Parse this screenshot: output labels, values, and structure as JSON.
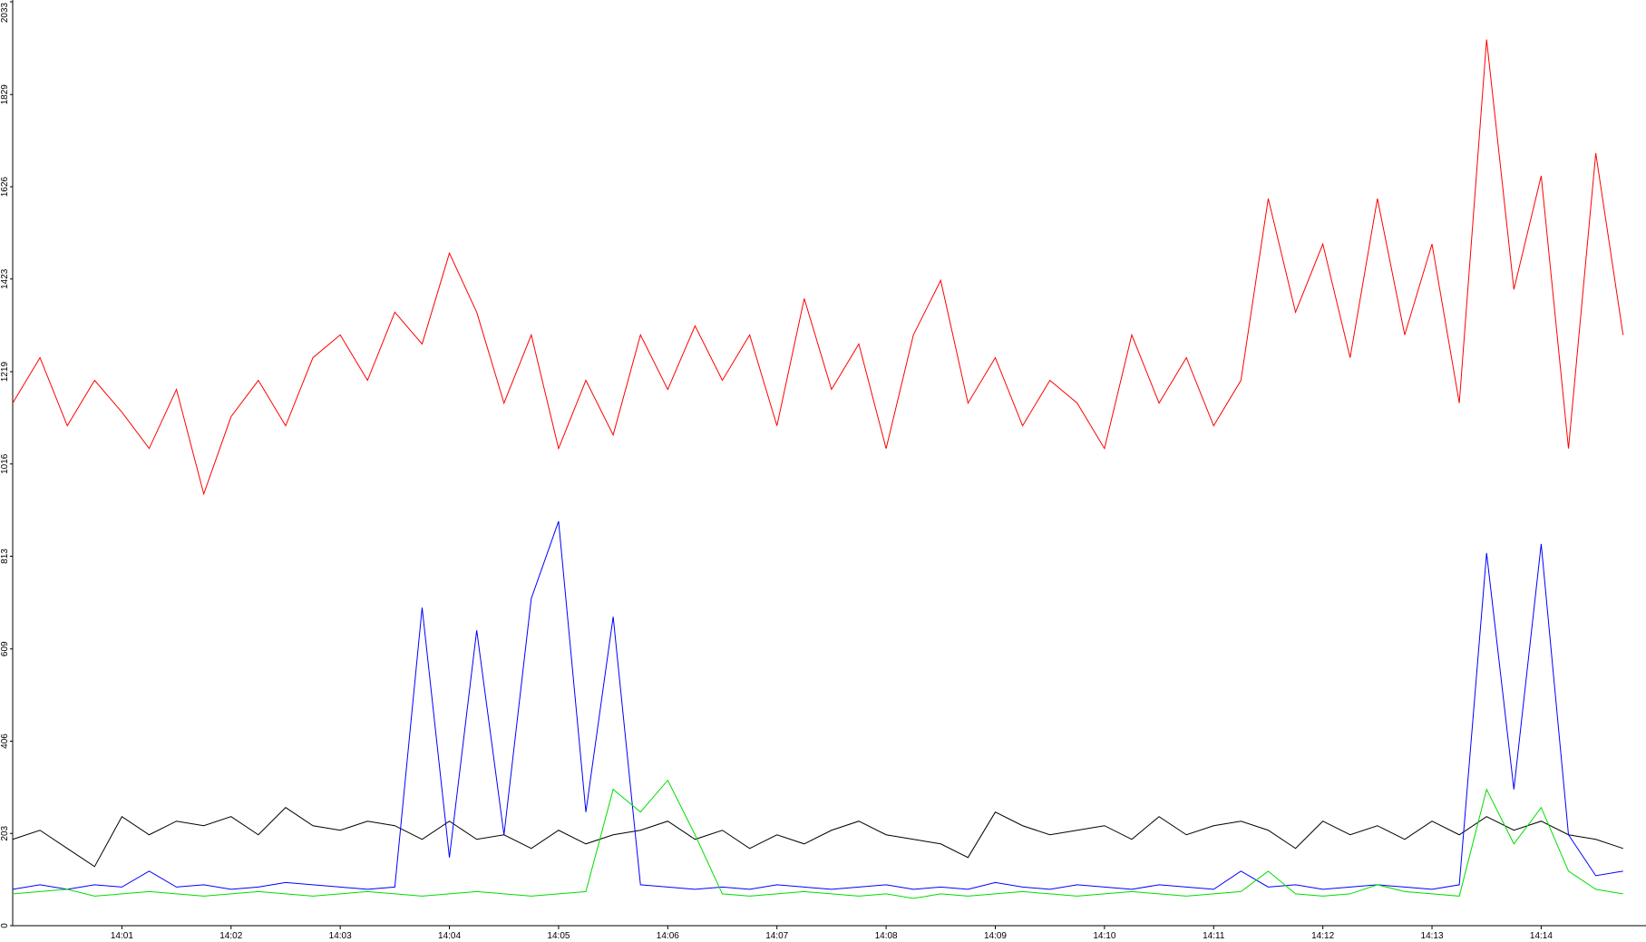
{
  "chart_data": {
    "type": "line",
    "x": [
      0,
      0.25,
      0.5,
      0.75,
      1,
      1.25,
      1.5,
      1.75,
      2,
      2.25,
      2.5,
      2.75,
      3,
      3.25,
      3.5,
      3.75,
      4,
      4.25,
      4.5,
      4.75,
      5,
      5.25,
      5.5,
      5.75,
      6,
      6.25,
      6.5,
      6.75,
      7,
      7.25,
      7.5,
      7.75,
      8,
      8.25,
      8.5,
      8.75,
      9,
      9.25,
      9.5,
      9.75,
      10,
      10.25,
      10.5,
      10.75,
      11,
      11.25,
      11.5,
      11.75,
      12,
      12.25,
      12.5,
      12.75,
      13,
      13.25,
      13.5,
      13.75,
      14,
      14.25,
      14.5,
      14.75
    ],
    "series": [
      {
        "color": "#ff0000",
        "values": [
          1150,
          1250,
          1100,
          1200,
          1130,
          1050,
          1180,
          950,
          1120,
          1200,
          1100,
          1250,
          1300,
          1200,
          1350,
          1280,
          1480,
          1350,
          1150,
          1300,
          1050,
          1200,
          1080,
          1300,
          1180,
          1320,
          1200,
          1300,
          1100,
          1380,
          1180,
          1280,
          1050,
          1300,
          1420,
          1150,
          1250,
          1100,
          1200,
          1150,
          1050,
          1300,
          1150,
          1250,
          1100,
          1200,
          1600,
          1350,
          1500,
          1250,
          1600,
          1300,
          1500,
          1150,
          1950,
          1400,
          1650,
          1050,
          1700,
          1300
        ]
      },
      {
        "color": "#000000",
        "values": [
          190,
          210,
          170,
          130,
          240,
          200,
          230,
          220,
          240,
          200,
          260,
          220,
          210,
          230,
          220,
          190,
          230,
          190,
          200,
          170,
          210,
          180,
          200,
          210,
          230,
          190,
          210,
          170,
          200,
          180,
          210,
          230,
          200,
          190,
          180,
          150,
          250,
          220,
          200,
          210,
          220,
          190,
          240,
          200,
          220,
          230,
          210,
          170,
          230,
          200,
          220,
          190,
          230,
          200,
          240,
          210,
          230,
          200,
          190,
          170
        ]
      },
      {
        "color": "#0000ff",
        "values": [
          80,
          90,
          80,
          90,
          85,
          120,
          85,
          90,
          80,
          85,
          95,
          90,
          85,
          80,
          85,
          700,
          150,
          650,
          200,
          720,
          890,
          250,
          680,
          90,
          85,
          80,
          85,
          80,
          90,
          85,
          80,
          85,
          90,
          80,
          85,
          80,
          95,
          85,
          80,
          90,
          85,
          80,
          90,
          85,
          80,
          120,
          85,
          90,
          80,
          85,
          90,
          85,
          80,
          90,
          820,
          300,
          840,
          200,
          110,
          120
        ]
      },
      {
        "color": "#00dd00",
        "values": [
          70,
          75,
          80,
          65,
          70,
          75,
          70,
          65,
          70,
          75,
          70,
          65,
          70,
          75,
          70,
          65,
          70,
          75,
          70,
          65,
          70,
          75,
          300,
          250,
          320,
          200,
          70,
          65,
          70,
          75,
          70,
          65,
          70,
          60,
          70,
          65,
          70,
          75,
          70,
          65,
          70,
          75,
          70,
          65,
          70,
          75,
          120,
          70,
          65,
          70,
          90,
          75,
          70,
          65,
          300,
          180,
          260,
          120,
          80,
          70
        ]
      }
    ],
    "xlim": [
      0,
      14.96
    ],
    "xticks": [
      {
        "value": 1,
        "label": "14:01"
      },
      {
        "value": 2,
        "label": "14:02"
      },
      {
        "value": 3,
        "label": "14:03"
      },
      {
        "value": 4,
        "label": "14:04"
      },
      {
        "value": 5,
        "label": "14:05"
      },
      {
        "value": 6,
        "label": "14:06"
      },
      {
        "value": 7,
        "label": "14:07"
      },
      {
        "value": 8,
        "label": "14:08"
      },
      {
        "value": 9,
        "label": "14:09"
      },
      {
        "value": 10,
        "label": "14:10"
      },
      {
        "value": 11,
        "label": "14:11"
      },
      {
        "value": 12,
        "label": "14:12"
      },
      {
        "value": 13,
        "label": "14:13"
      },
      {
        "value": 14,
        "label": "14:14"
      }
    ],
    "ylim": [
      0,
      2033
    ],
    "yticks": [
      0,
      203,
      406,
      609,
      813,
      1016,
      1219,
      1423,
      1626,
      1829,
      2033
    ]
  }
}
